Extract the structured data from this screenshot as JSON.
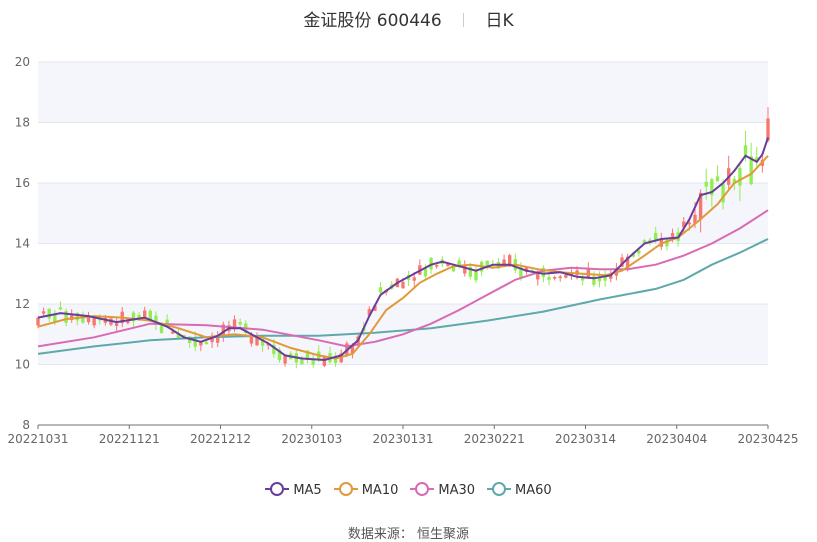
{
  "title": {
    "name": "金证股份",
    "code": "600446",
    "period": "日K"
  },
  "source": "数据来源： 恒生聚源",
  "colors": {
    "up": "#f7776f",
    "down": "#90ee52",
    "grid": "#e4e7f0",
    "band": "#f5f6fb"
  },
  "chart_data": {
    "type": "candlestick",
    "ylim": [
      8,
      20
    ],
    "yticks": [
      8,
      10,
      12,
      14,
      16,
      18,
      20
    ],
    "xtick_labels": [
      "20221031",
      "20221121",
      "20221212",
      "20230103",
      "20230131",
      "20230221",
      "20230314",
      "20230404",
      "20230425"
    ],
    "n_bars": 120,
    "legend": [
      {
        "name": "MA5",
        "color": "#6a3d9a"
      },
      {
        "name": "MA10",
        "color": "#e09a3a"
      },
      {
        "name": "MA30",
        "color": "#d86bb4"
      },
      {
        "name": "MA60",
        "color": "#5fa8ab"
      }
    ],
    "ma_series": [
      {
        "name": "MA5",
        "color": "#6a3d9a",
        "points": [
          [
            0,
            11.55
          ],
          [
            4,
            11.7
          ],
          [
            9,
            11.6
          ],
          [
            14,
            11.4
          ],
          [
            19,
            11.55
          ],
          [
            23,
            11.25
          ],
          [
            26,
            10.9
          ],
          [
            29,
            10.75
          ],
          [
            32,
            10.95
          ],
          [
            34,
            11.2
          ],
          [
            36,
            11.2
          ],
          [
            38,
            11.0
          ],
          [
            41,
            10.7
          ],
          [
            44,
            10.3
          ],
          [
            47,
            10.2
          ],
          [
            51,
            10.15
          ],
          [
            54,
            10.3
          ],
          [
            57,
            10.8
          ],
          [
            59,
            11.6
          ],
          [
            61,
            12.3
          ],
          [
            64,
            12.7
          ],
          [
            67,
            13.0
          ],
          [
            70,
            13.3
          ],
          [
            72,
            13.4
          ],
          [
            75,
            13.25
          ],
          [
            78,
            13.1
          ],
          [
            81,
            13.3
          ],
          [
            84,
            13.3
          ],
          [
            87,
            13.1
          ],
          [
            90,
            13.0
          ],
          [
            93,
            13.05
          ],
          [
            96,
            12.9
          ],
          [
            99,
            12.85
          ],
          [
            102,
            12.95
          ],
          [
            105,
            13.5
          ],
          [
            108,
            14.0
          ],
          [
            111,
            14.15
          ],
          [
            114,
            14.2
          ],
          [
            116,
            14.8
          ],
          [
            118,
            15.6
          ],
          [
            120,
            15.7
          ],
          [
            122,
            16.0
          ],
          [
            124,
            16.4
          ],
          [
            126,
            16.9
          ],
          [
            128,
            16.7
          ],
          [
            129,
            16.95
          ],
          [
            130,
            17.5
          ]
        ]
      },
      {
        "name": "MA10",
        "color": "#e09a3a",
        "points": [
          [
            0,
            11.25
          ],
          [
            5,
            11.5
          ],
          [
            10,
            11.6
          ],
          [
            15,
            11.55
          ],
          [
            20,
            11.45
          ],
          [
            25,
            11.2
          ],
          [
            30,
            10.9
          ],
          [
            35,
            11.0
          ],
          [
            40,
            10.9
          ],
          [
            45,
            10.55
          ],
          [
            50,
            10.3
          ],
          [
            53,
            10.2
          ],
          [
            56,
            10.35
          ],
          [
            59,
            11.0
          ],
          [
            62,
            11.8
          ],
          [
            65,
            12.2
          ],
          [
            68,
            12.7
          ],
          [
            71,
            13.0
          ],
          [
            74,
            13.25
          ],
          [
            77,
            13.3
          ],
          [
            81,
            13.2
          ],
          [
            85,
            13.3
          ],
          [
            89,
            13.15
          ],
          [
            93,
            13.05
          ],
          [
            97,
            13.0
          ],
          [
            101,
            12.95
          ],
          [
            104,
            13.1
          ],
          [
            108,
            13.6
          ],
          [
            111,
            14.0
          ],
          [
            114,
            14.2
          ],
          [
            118,
            14.8
          ],
          [
            121,
            15.3
          ],
          [
            124,
            16.0
          ],
          [
            127,
            16.3
          ],
          [
            130,
            16.9
          ]
        ]
      },
      {
        "name": "MA30",
        "color": "#d86bb4",
        "points": [
          [
            0,
            10.6
          ],
          [
            10,
            10.9
          ],
          [
            20,
            11.35
          ],
          [
            30,
            11.3
          ],
          [
            40,
            11.15
          ],
          [
            50,
            10.8
          ],
          [
            55,
            10.6
          ],
          [
            60,
            10.75
          ],
          [
            65,
            11.0
          ],
          [
            70,
            11.35
          ],
          [
            75,
            11.8
          ],
          [
            80,
            12.3
          ],
          [
            85,
            12.8
          ],
          [
            90,
            13.1
          ],
          [
            95,
            13.2
          ],
          [
            100,
            13.15
          ],
          [
            105,
            13.15
          ],
          [
            110,
            13.3
          ],
          [
            115,
            13.6
          ],
          [
            120,
            14.0
          ],
          [
            125,
            14.5
          ],
          [
            130,
            15.1
          ]
        ]
      },
      {
        "name": "MA60",
        "color": "#5fa8ab",
        "points": [
          [
            0,
            10.35
          ],
          [
            10,
            10.6
          ],
          [
            20,
            10.8
          ],
          [
            30,
            10.9
          ],
          [
            40,
            10.95
          ],
          [
            50,
            10.95
          ],
          [
            60,
            11.05
          ],
          [
            70,
            11.2
          ],
          [
            80,
            11.45
          ],
          [
            90,
            11.75
          ],
          [
            100,
            12.15
          ],
          [
            110,
            12.5
          ],
          [
            115,
            12.8
          ],
          [
            120,
            13.3
          ],
          [
            125,
            13.7
          ],
          [
            130,
            14.15
          ]
        ]
      }
    ]
  }
}
